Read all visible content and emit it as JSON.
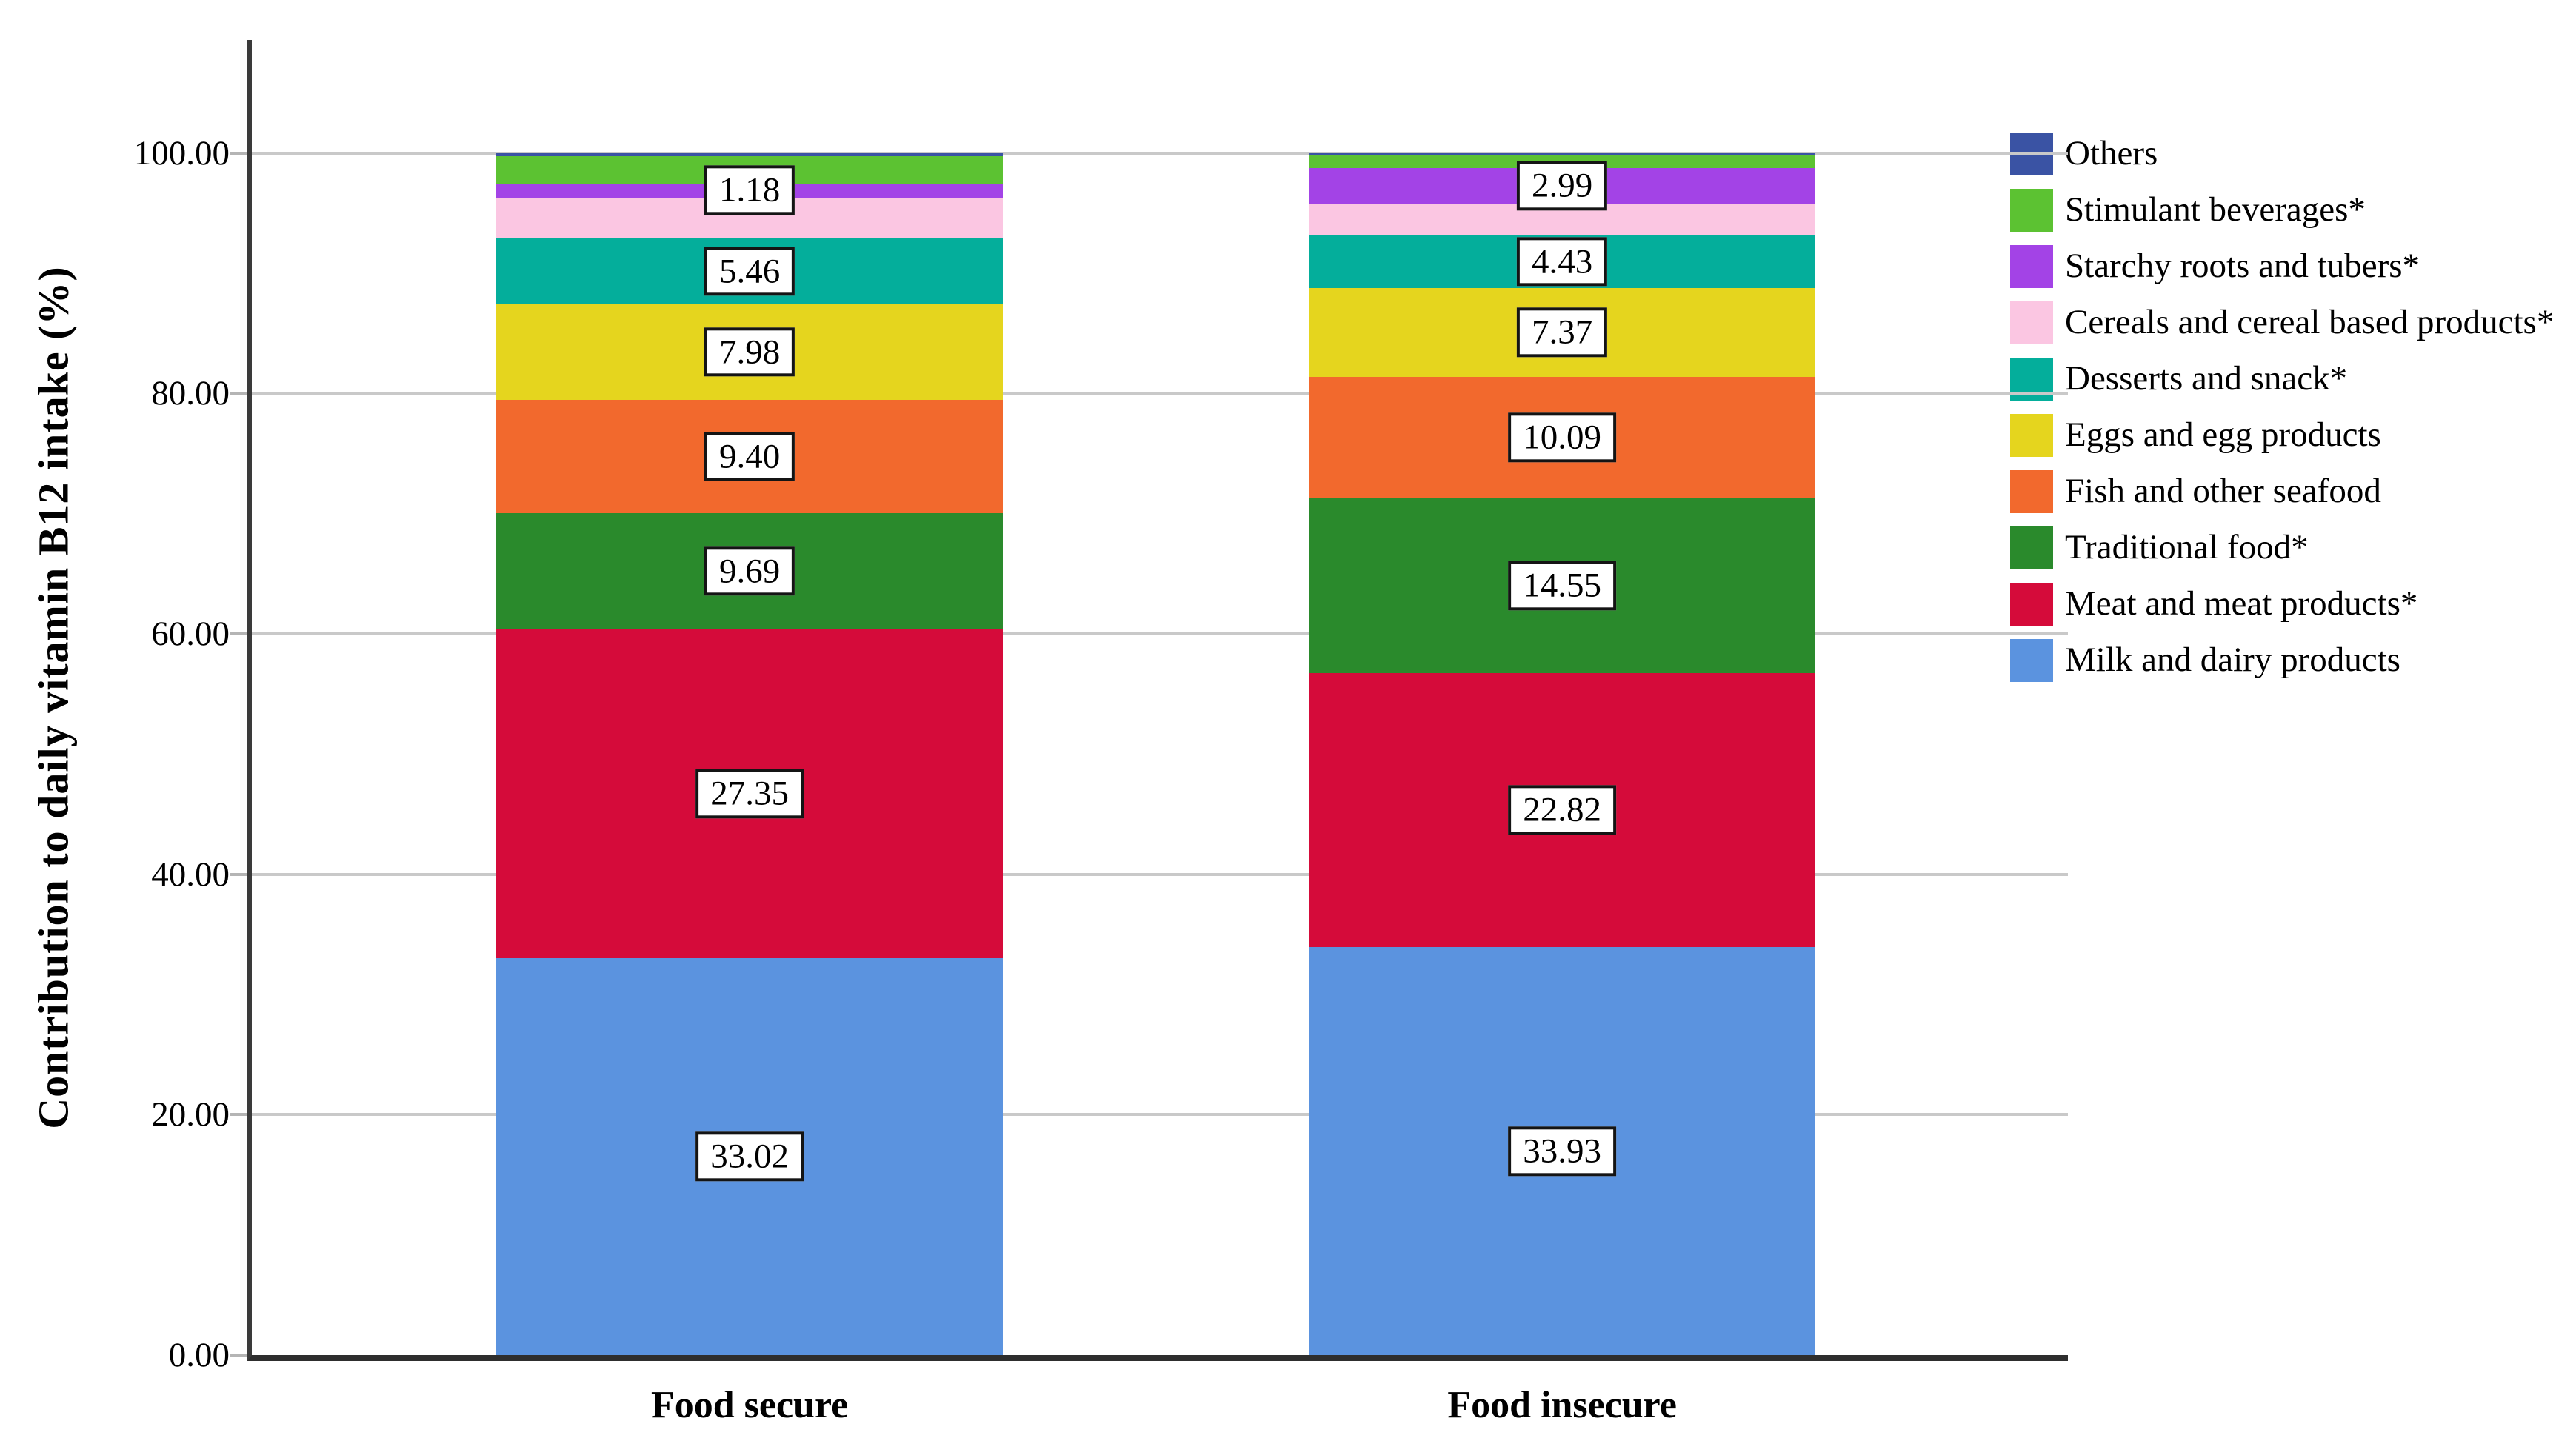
{
  "chart_data": {
    "type": "bar",
    "stacked": true,
    "title": "",
    "ylabel": "Contribution to daily vitamin B12 intake (%)",
    "xlabel": "",
    "categories": [
      "Food secure",
      "Food insecure"
    ],
    "ylim": [
      0,
      109.4
    ],
    "yticks": {
      "values": [
        0,
        20,
        40,
        60,
        80,
        100
      ],
      "labels": [
        "0.00",
        "20.00",
        "40.00",
        "60.00",
        "80.00",
        "100.00"
      ]
    },
    "grid": "horizontal-behind-bars",
    "legend_position": "right",
    "series_order": "bottom-to-top",
    "series": [
      {
        "name": "Milk and dairy products",
        "color": "#5B93DF",
        "values": [
          33.02,
          33.93
        ],
        "data_labels": [
          "33.02",
          "33.93"
        ]
      },
      {
        "name": "Meat and meat products*",
        "color": "#D50B3A",
        "values": [
          27.35,
          22.82
        ],
        "data_labels": [
          "27.35",
          "22.82"
        ]
      },
      {
        "name": "Traditional food*",
        "color": "#2A8A2C",
        "values": [
          9.69,
          14.55
        ],
        "data_labels": [
          "9.69",
          "14.55"
        ]
      },
      {
        "name": "Fish and other seafood",
        "color": "#F2692D",
        "values": [
          9.4,
          10.09
        ],
        "data_labels": [
          "9.40",
          "10.09"
        ]
      },
      {
        "name": "Eggs and egg products",
        "color": "#E5D51E",
        "values": [
          7.98,
          7.37
        ],
        "data_labels": [
          "7.98",
          "7.37"
        ]
      },
      {
        "name": "Desserts and snack*",
        "color": "#04AE9B",
        "values": [
          5.46,
          4.43
        ],
        "data_labels": [
          "5.46",
          "4.43"
        ]
      },
      {
        "name": "Cereals and cereal based products*",
        "color": "#FBC6E2",
        "values": [
          3.4,
          2.58
        ],
        "data_labels": null,
        "estimated": true
      },
      {
        "name": "Starchy roots and tubers*",
        "color": "#A343E6",
        "values": [
          1.18,
          2.99
        ],
        "data_labels": [
          "1.18",
          "2.99"
        ]
      },
      {
        "name": "Stimulant beverages*",
        "color": "#5CC232",
        "values": [
          2.28,
          1.12
        ],
        "data_labels": null,
        "estimated": true
      },
      {
        "name": "Others",
        "color": "#3A53A4",
        "values": [
          0.24,
          0.12
        ],
        "data_labels": null,
        "estimated": true
      }
    ],
    "bar_layout": {
      "bar_left_pct": [
        13.46,
        58.2
      ],
      "bar_width_pct": 27.9
    },
    "colors": {
      "gridline": "#c9c9c9",
      "axis": "#3a3a3a",
      "label_box_border": "#141414",
      "label_box_bg": "#ffffff"
    }
  }
}
